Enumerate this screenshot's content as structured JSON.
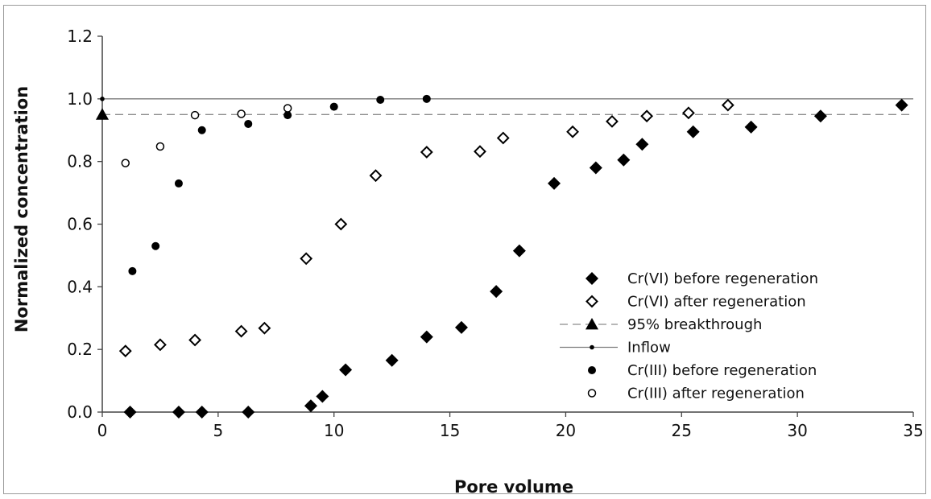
{
  "chart_data": {
    "type": "scatter",
    "title": "",
    "xlabel": "Pore volume",
    "ylabel": "Normalized concentration",
    "xlim": [
      0,
      35
    ],
    "ylim": [
      0,
      1.2
    ],
    "x_ticks": [
      "0",
      "5",
      "10",
      "15",
      "20",
      "25",
      "30",
      "35"
    ],
    "y_ticks": [
      "0.0",
      "0.2",
      "0.4",
      "0.6",
      "0.8",
      "1.0",
      "1.2"
    ],
    "grid": false,
    "legend_position": "right",
    "reference_lines": [
      {
        "name": "95% breakthrough",
        "y": 0.95,
        "style": "dashed"
      },
      {
        "name": "Inflow",
        "y": 1.0,
        "style": "solid"
      }
    ],
    "series": [
      {
        "name": "Cr(VI) before regeneration",
        "marker": "filled-diamond",
        "points": [
          [
            1.2,
            0.0
          ],
          [
            3.3,
            0.0
          ],
          [
            4.3,
            0.0
          ],
          [
            6.3,
            0.0
          ],
          [
            9.0,
            0.02
          ],
          [
            9.5,
            0.05
          ],
          [
            10.5,
            0.135
          ],
          [
            12.5,
            0.165
          ],
          [
            14.0,
            0.24
          ],
          [
            15.5,
            0.27
          ],
          [
            17.0,
            0.385
          ],
          [
            18.0,
            0.515
          ],
          [
            19.5,
            0.73
          ],
          [
            21.3,
            0.78
          ],
          [
            22.5,
            0.805
          ],
          [
            23.3,
            0.855
          ],
          [
            25.5,
            0.895
          ],
          [
            28.0,
            0.91
          ],
          [
            31.0,
            0.945
          ],
          [
            34.5,
            0.98
          ]
        ]
      },
      {
        "name": "Cr(VI) after regeneration",
        "marker": "open-diamond",
        "points": [
          [
            1.0,
            0.195
          ],
          [
            2.5,
            0.215
          ],
          [
            4.0,
            0.23
          ],
          [
            6.0,
            0.258
          ],
          [
            7.0,
            0.268
          ],
          [
            8.8,
            0.49
          ],
          [
            10.3,
            0.6
          ],
          [
            11.8,
            0.755
          ],
          [
            14.0,
            0.83
          ],
          [
            16.3,
            0.832
          ],
          [
            17.3,
            0.875
          ],
          [
            20.3,
            0.895
          ],
          [
            22.0,
            0.928
          ],
          [
            23.5,
            0.945
          ],
          [
            25.3,
            0.955
          ],
          [
            27.0,
            0.98
          ]
        ]
      },
      {
        "name": "95% breakthrough",
        "marker": "filled-triangle",
        "points": [
          [
            0,
            0.95
          ]
        ]
      },
      {
        "name": "Inflow",
        "marker": "small-dot",
        "points": [
          [
            0,
            1.0
          ]
        ]
      },
      {
        "name": "Cr(III) before regeneration",
        "marker": "filled-circle",
        "points": [
          [
            1.3,
            0.45
          ],
          [
            2.3,
            0.53
          ],
          [
            3.3,
            0.73
          ],
          [
            4.3,
            0.9
          ],
          [
            6.3,
            0.92
          ],
          [
            8.0,
            0.948
          ],
          [
            10.0,
            0.975
          ],
          [
            12.0,
            0.997
          ],
          [
            14.0,
            1.0
          ]
        ]
      },
      {
        "name": "Cr(III) after regeneration",
        "marker": "open-circle",
        "points": [
          [
            1.0,
            0.795
          ],
          [
            2.5,
            0.848
          ],
          [
            4.0,
            0.948
          ],
          [
            6.0,
            0.952
          ],
          [
            8.0,
            0.97
          ]
        ]
      }
    ],
    "legend": [
      {
        "label": "Cr(VI) before regeneration",
        "marker": "filled-diamond",
        "line": "none"
      },
      {
        "label": "Cr(VI) after regeneration",
        "marker": "open-diamond",
        "line": "none"
      },
      {
        "label": "95% breakthrough",
        "marker": "filled-triangle",
        "line": "dashed"
      },
      {
        "label": "Inflow",
        "marker": "small-dot",
        "line": "solid"
      },
      {
        "label": "Cr(III) before regeneration",
        "marker": "filled-circle",
        "line": "none"
      },
      {
        "label": "Cr(III) after regeneration",
        "marker": "open-circle",
        "line": "none"
      }
    ],
    "colors": {
      "marker": "#000000",
      "dashed_line": "#8c8c8c",
      "solid_line": "#7a7a7a",
      "axis": "#444444"
    }
  }
}
